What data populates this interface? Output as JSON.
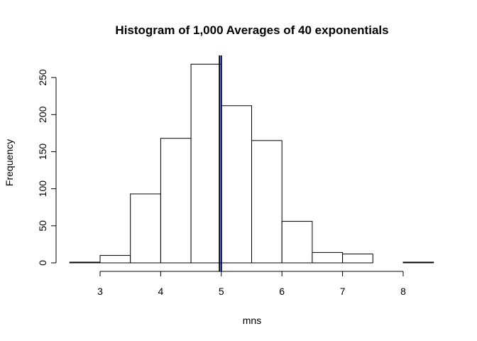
{
  "chart_data": {
    "type": "bar",
    "title": "Histogram of 1,000 Averages of 40 exponentials",
    "xlabel": "mns",
    "ylabel": "Frequency",
    "bins": [
      {
        "from": 2.5,
        "to": 3.0,
        "count": 1
      },
      {
        "from": 3.0,
        "to": 3.5,
        "count": 10
      },
      {
        "from": 3.5,
        "to": 4.0,
        "count": 93
      },
      {
        "from": 4.0,
        "to": 4.5,
        "count": 168
      },
      {
        "from": 4.5,
        "to": 5.0,
        "count": 268
      },
      {
        "from": 5.0,
        "to": 5.5,
        "count": 212
      },
      {
        "from": 5.5,
        "to": 6.0,
        "count": 165
      },
      {
        "from": 6.0,
        "to": 6.5,
        "count": 56
      },
      {
        "from": 6.5,
        "to": 7.0,
        "count": 14
      },
      {
        "from": 7.0,
        "to": 7.5,
        "count": 12
      },
      {
        "from": 7.5,
        "to": 8.0,
        "count": 0
      },
      {
        "from": 8.0,
        "to": 8.5,
        "count": 1
      }
    ],
    "xlim": [
      2.5,
      8.5
    ],
    "ylim": [
      0,
      280
    ],
    "x_ticks": [
      "3",
      "4",
      "5",
      "6",
      "7",
      "8"
    ],
    "y_ticks": [
      "0",
      "50",
      "100",
      "150",
      "200",
      "250"
    ],
    "reference_lines": [
      {
        "x": 4.97,
        "color": "#000000"
      },
      {
        "x": 5.0,
        "color": "#00008b"
      }
    ],
    "bar_fill": "#ffffff",
    "bar_stroke": "#000000",
    "grid": false
  }
}
